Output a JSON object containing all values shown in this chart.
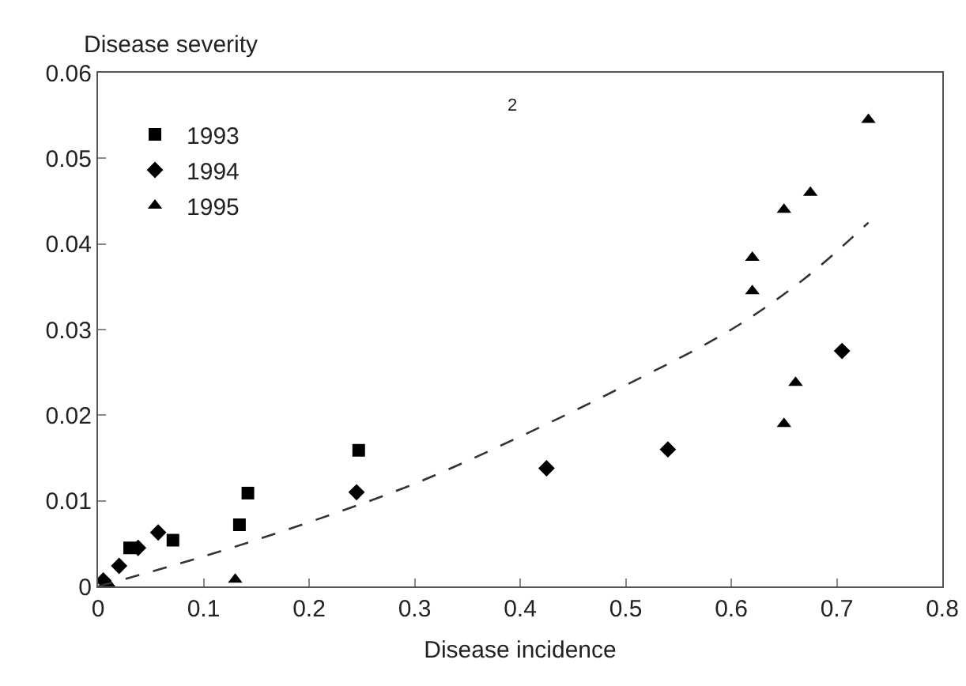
{
  "chart_data": {
    "type": "scatter",
    "xlabel": "Disease incidence",
    "ylabel": "Disease severity",
    "annotations": [
      "2"
    ],
    "xlim": [
      0,
      0.8
    ],
    "xticks": [
      0,
      0.1,
      0.2,
      0.3,
      0.4,
      0.5,
      0.6,
      0.7,
      0.8
    ],
    "ylim": [
      0,
      0.06
    ],
    "yticks": [
      0,
      0.01,
      0.02,
      0.03,
      0.04,
      0.05,
      0.06
    ],
    "grid": false,
    "legend": "top left",
    "series": [
      {
        "name": "1993",
        "color": "#000000",
        "marker": "square",
        "x": [
          0.03,
          0.071,
          0.134,
          0.142,
          0.247
        ],
        "values": [
          0.0045,
          0.0054,
          0.0072,
          0.0109,
          0.0159
        ]
      },
      {
        "name": "1994",
        "color": "#000000",
        "marker": "diamond",
        "x": [
          0.005,
          0.02,
          0.038,
          0.057,
          0.245,
          0.425,
          0.54,
          0.705
        ],
        "values": [
          0.0007,
          0.0024,
          0.0045,
          0.0063,
          0.011,
          0.0138,
          0.016,
          0.0275
        ]
      },
      {
        "name": "1995",
        "color": "#000000",
        "marker": "triangle",
        "x": [
          0.01,
          0.13,
          0.62,
          0.62,
          0.65,
          0.65,
          0.661,
          0.675,
          0.73
        ],
        "values": [
          0.0003,
          0.0008,
          0.0345,
          0.0384,
          0.019,
          0.044,
          0.0238,
          0.046,
          0.0545
        ]
      },
      {
        "type": "line",
        "color": "#333333",
        "line_style": "dashed",
        "x": [
          0,
          0.1,
          0.2,
          0.3,
          0.4,
          0.5,
          0.6,
          0.67,
          0.73
        ],
        "values": [
          0,
          0.0035,
          0.0075,
          0.012,
          0.0175,
          0.0235,
          0.03,
          0.036,
          0.0425
        ]
      }
    ]
  }
}
